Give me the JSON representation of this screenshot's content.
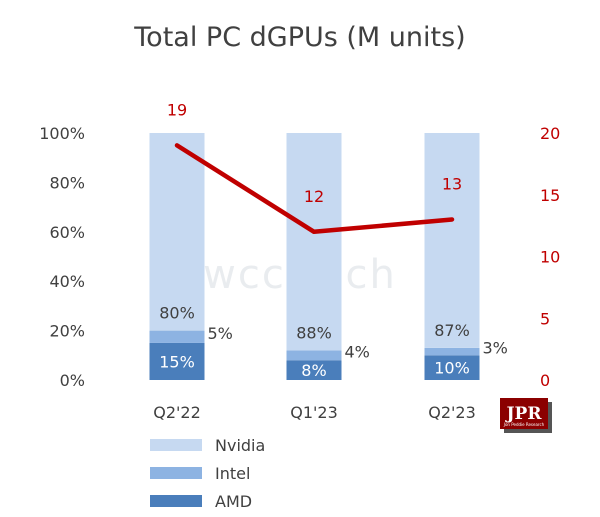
{
  "chart_data": {
    "type": "bar",
    "title": "Total PC dGPUs (M units)",
    "categories": [
      "Q2'22",
      "Q1'23",
      "Q2'23"
    ],
    "series": [
      {
        "name": "AMD",
        "values": [
          15,
          8,
          10
        ],
        "labels": [
          "15%",
          "8%",
          "10%"
        ],
        "color": "#4a7ebb"
      },
      {
        "name": "Intel",
        "values": [
          5,
          4,
          3
        ],
        "labels": [
          "5%",
          "4%",
          "3%"
        ],
        "color": "#8db3e2"
      },
      {
        "name": "Nvidia",
        "values": [
          80,
          88,
          87
        ],
        "labels": [
          "80%",
          "88%",
          "87%"
        ],
        "color": "#c6d9f1"
      }
    ],
    "line_series": {
      "values": [
        19,
        12,
        13
      ],
      "labels": [
        "19",
        "12",
        "13"
      ],
      "color": "#c00000"
    },
    "y_left": {
      "ticks": [
        "0%",
        "20%",
        "40%",
        "60%",
        "80%",
        "100%"
      ],
      "range": [
        0,
        100
      ]
    },
    "y_right": {
      "ticks": [
        "0",
        "5",
        "10",
        "15",
        "20"
      ],
      "range": [
        0,
        20
      ]
    },
    "legend": {
      "position": "bottom-left",
      "items": [
        "Nvidia",
        "Intel",
        "AMD"
      ]
    },
    "watermark": "wccftech",
    "logo": {
      "text": "JPR",
      "subtext": "Jon Peddie Research"
    }
  }
}
